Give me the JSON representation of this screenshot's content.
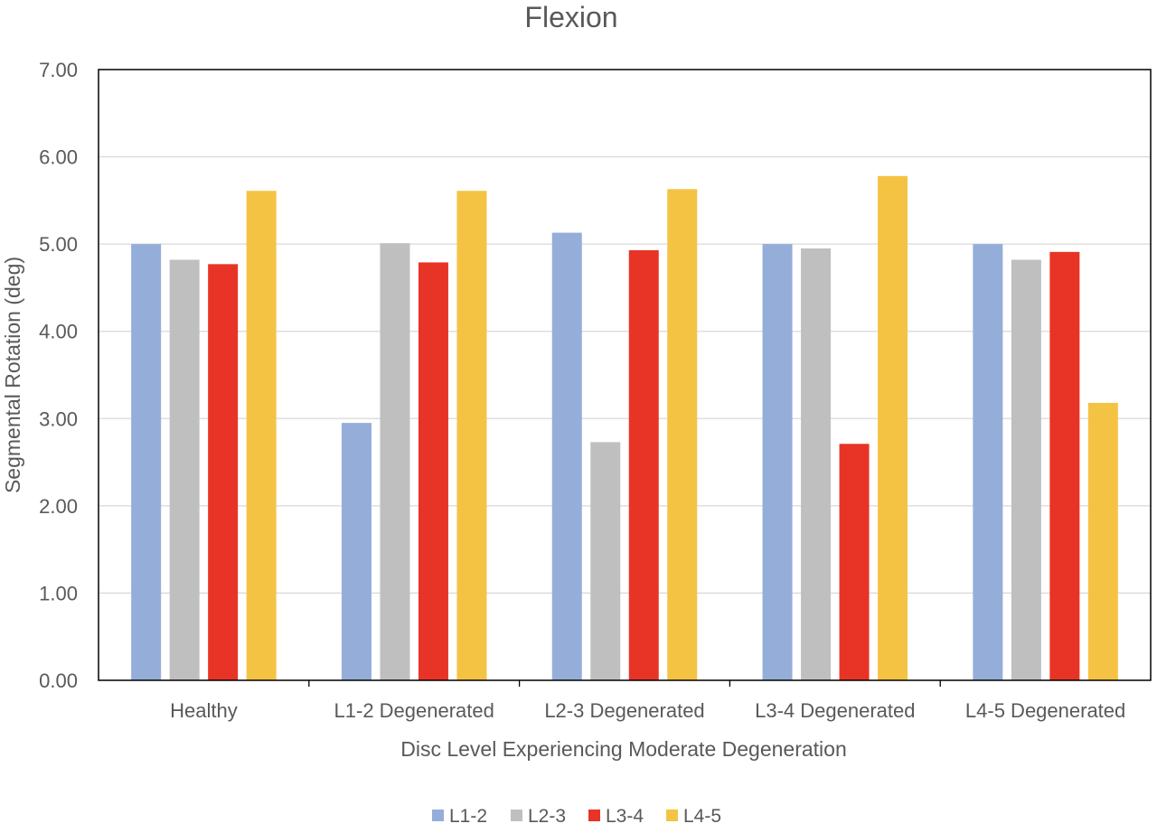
{
  "chart_data": {
    "type": "bar",
    "title": "Flexion",
    "xlabel": "Disc Level Experiencing Moderate Degeneration",
    "ylabel": "Segmental Rotation (deg)",
    "ylim": [
      0,
      7
    ],
    "yticks": [
      "0.00",
      "1.00",
      "2.00",
      "3.00",
      "4.00",
      "5.00",
      "6.00",
      "7.00"
    ],
    "grid": true,
    "legend_position": "bottom",
    "categories": [
      "Healthy",
      "L1-2 Degenerated",
      "L2-3 Degenerated",
      "L3-4 Degenerated",
      "L4-5 Degenerated"
    ],
    "series": [
      {
        "name": "L1-2",
        "color": "#95ADD9",
        "values": [
          5.0,
          2.95,
          5.13,
          5.0,
          5.0
        ]
      },
      {
        "name": "L2-3",
        "color": "#BFBFBF",
        "values": [
          4.82,
          5.01,
          2.73,
          4.95,
          4.82
        ]
      },
      {
        "name": "L3-4",
        "color": "#E83426",
        "values": [
          4.77,
          4.79,
          4.93,
          2.71,
          4.91
        ]
      },
      {
        "name": "L4-5",
        "color": "#F5C344",
        "values": [
          5.61,
          5.61,
          5.63,
          5.78,
          3.18
        ]
      }
    ]
  }
}
